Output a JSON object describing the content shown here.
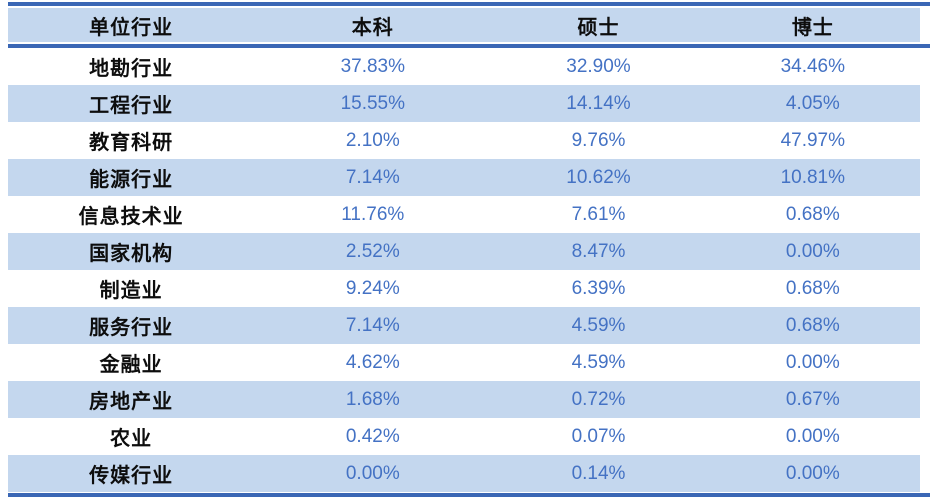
{
  "colors": {
    "rule_blue": "#3a67b5",
    "stripe_blue": "#c4d7ee",
    "value_text_blue": "#4472c4",
    "label_text": "#0d0d0d",
    "background": "#ffffff"
  },
  "chart_data": {
    "type": "table",
    "title": "",
    "unit": "%",
    "columns": [
      "单位行业",
      "本科",
      "硕士",
      "博士"
    ],
    "rows": [
      {
        "label": "地勘行业",
        "values": [
          "37.83%",
          "32.90%",
          "34.46%"
        ]
      },
      {
        "label": "工程行业",
        "values": [
          "15.55%",
          "14.14%",
          "4.05%"
        ]
      },
      {
        "label": "教育科研",
        "values": [
          "2.10%",
          "9.76%",
          "47.97%"
        ]
      },
      {
        "label": "能源行业",
        "values": [
          "7.14%",
          "10.62%",
          "10.81%"
        ]
      },
      {
        "label": "信息技术业",
        "values": [
          "11.76%",
          "7.61%",
          "0.68%"
        ]
      },
      {
        "label": "国家机构",
        "values": [
          "2.52%",
          "8.47%",
          "0.00%"
        ]
      },
      {
        "label": "制造业",
        "values": [
          "9.24%",
          "6.39%",
          "0.68%"
        ]
      },
      {
        "label": "服务行业",
        "values": [
          "7.14%",
          "4.59%",
          "0.68%"
        ]
      },
      {
        "label": "金融业",
        "values": [
          "4.62%",
          "4.59%",
          "0.00%"
        ]
      },
      {
        "label": "房地产业",
        "values": [
          "1.68%",
          "0.72%",
          "0.67%"
        ]
      },
      {
        "label": "农业",
        "values": [
          "0.42%",
          "0.07%",
          "0.00%"
        ]
      },
      {
        "label": "传媒行业",
        "values": [
          "0.00%",
          "0.14%",
          "0.00%"
        ]
      }
    ],
    "series": [
      {
        "name": "本科",
        "values": [
          37.83,
          15.55,
          2.1,
          7.14,
          11.76,
          2.52,
          9.24,
          7.14,
          4.62,
          1.68,
          0.42,
          0.0
        ]
      },
      {
        "name": "硕士",
        "values": [
          32.9,
          14.14,
          9.76,
          10.62,
          7.61,
          8.47,
          6.39,
          4.59,
          4.59,
          0.72,
          0.07,
          0.14
        ]
      },
      {
        "name": "博士",
        "values": [
          34.46,
          4.05,
          47.97,
          10.81,
          0.68,
          0.0,
          0.68,
          0.68,
          0.0,
          0.67,
          0.0,
          0.0
        ]
      }
    ]
  }
}
